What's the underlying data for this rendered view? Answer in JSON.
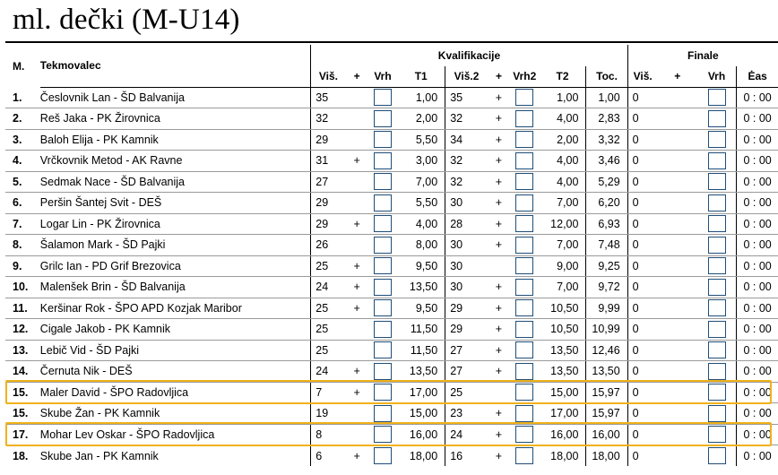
{
  "title": "ml. dečki (M-U14)",
  "headers": {
    "rank": "M.",
    "name": "Tekmovalec",
    "qual_group": "Kvalifikacije",
    "final_group": "Finale",
    "vis": "Viš.",
    "plus": "+",
    "vrh": "Vrh",
    "t1": "T1",
    "vis2": "Viš.2",
    "plus2": "+",
    "vrh2": "Vrh2",
    "t2": "T2",
    "toc": "Toc.",
    "fvis": "Viš.",
    "fplus": "+",
    "fvrh": "Vrh",
    "cas": "Ėas"
  },
  "highlight_color": "#f0b21a",
  "rows": [
    {
      "rank": "1.",
      "name": "Česlovnik Lan - ŠD Balvanija",
      "vis": "35",
      "plus": "",
      "t1": "1,00",
      "vis2": "35",
      "plus2": "+",
      "t2": "1,00",
      "toc": "1,00",
      "fvis": "0",
      "cas": "0 : 00",
      "hl": false
    },
    {
      "rank": "2.",
      "name": "Reš Jaka - PK Žirovnica",
      "vis": "32",
      "plus": "",
      "t1": "2,00",
      "vis2": "32",
      "plus2": "+",
      "t2": "4,00",
      "toc": "2,83",
      "fvis": "0",
      "cas": "0 : 00",
      "hl": false
    },
    {
      "rank": "3.",
      "name": "Baloh Elija - PK Kamnik",
      "vis": "29",
      "plus": "",
      "t1": "5,50",
      "vis2": "34",
      "plus2": "+",
      "t2": "2,00",
      "toc": "3,32",
      "fvis": "0",
      "cas": "0 : 00",
      "hl": false
    },
    {
      "rank": "4.",
      "name": "Vrčkovnik Metod - AK Ravne",
      "vis": "31",
      "plus": "+",
      "t1": "3,00",
      "vis2": "32",
      "plus2": "+",
      "t2": "4,00",
      "toc": "3,46",
      "fvis": "0",
      "cas": "0 : 00",
      "hl": false
    },
    {
      "rank": "5.",
      "name": "Sedmak Nace - ŠD Balvanija",
      "vis": "27",
      "plus": "",
      "t1": "7,00",
      "vis2": "32",
      "plus2": "+",
      "t2": "4,00",
      "toc": "5,29",
      "fvis": "0",
      "cas": "0 : 00",
      "hl": false
    },
    {
      "rank": "6.",
      "name": "Peršin Šantej Svit - DEŠ",
      "vis": "29",
      "plus": "",
      "t1": "5,50",
      "vis2": "30",
      "plus2": "+",
      "t2": "7,00",
      "toc": "6,20",
      "fvis": "0",
      "cas": "0 : 00",
      "hl": false
    },
    {
      "rank": "7.",
      "name": "Logar Lin - PK Žirovnica",
      "vis": "29",
      "plus": "+",
      "t1": "4,00",
      "vis2": "28",
      "plus2": "+",
      "t2": "12,00",
      "toc": "6,93",
      "fvis": "0",
      "cas": "0 : 00",
      "hl": false
    },
    {
      "rank": "8.",
      "name": "Šalamon Mark - ŠD Pajki",
      "vis": "26",
      "plus": "",
      "t1": "8,00",
      "vis2": "30",
      "plus2": "+",
      "t2": "7,00",
      "toc": "7,48",
      "fvis": "0",
      "cas": "0 : 00",
      "hl": false
    },
    {
      "rank": "9.",
      "name": "Grilc Ian - PD Grif Brezovica",
      "vis": "25",
      "plus": "+",
      "t1": "9,50",
      "vis2": "30",
      "plus2": "",
      "t2": "9,00",
      "toc": "9,25",
      "fvis": "0",
      "cas": "0 : 00",
      "hl": false
    },
    {
      "rank": "10.",
      "name": "Malenšek Brin - ŠD Balvanija",
      "vis": "24",
      "plus": "+",
      "t1": "13,50",
      "vis2": "30",
      "plus2": "+",
      "t2": "7,00",
      "toc": "9,72",
      "fvis": "0",
      "cas": "0 : 00",
      "hl": false
    },
    {
      "rank": "11.",
      "name": "Keršinar Rok - ŠPO APD Kozjak Maribor",
      "vis": "25",
      "plus": "+",
      "t1": "9,50",
      "vis2": "29",
      "plus2": "+",
      "t2": "10,50",
      "toc": "9,99",
      "fvis": "0",
      "cas": "0 : 00",
      "hl": false
    },
    {
      "rank": "12.",
      "name": "Cigale Jakob - PK Kamnik",
      "vis": "25",
      "plus": "",
      "t1": "11,50",
      "vis2": "29",
      "plus2": "+",
      "t2": "10,50",
      "toc": "10,99",
      "fvis": "0",
      "cas": "0 : 00",
      "hl": false
    },
    {
      "rank": "13.",
      "name": "Lebič Vid - ŠD Pajki",
      "vis": "25",
      "plus": "",
      "t1": "11,50",
      "vis2": "27",
      "plus2": "+",
      "t2": "13,50",
      "toc": "12,46",
      "fvis": "0",
      "cas": "0 : 00",
      "hl": false
    },
    {
      "rank": "14.",
      "name": "Černuta Nik - DEŠ",
      "vis": "24",
      "plus": "+",
      "t1": "13,50",
      "vis2": "27",
      "plus2": "+",
      "t2": "13,50",
      "toc": "13,50",
      "fvis": "0",
      "cas": "0 : 00",
      "hl": false
    },
    {
      "rank": "15.",
      "name": "Maler David - ŠPO Radovljica",
      "vis": "7",
      "plus": "+",
      "t1": "17,00",
      "vis2": "25",
      "plus2": "",
      "t2": "15,00",
      "toc": "15,97",
      "fvis": "0",
      "cas": "0 : 00",
      "hl": true
    },
    {
      "rank": "15.",
      "name": "Skube Žan - PK Kamnik",
      "vis": "19",
      "plus": "",
      "t1": "15,00",
      "vis2": "23",
      "plus2": "+",
      "t2": "17,00",
      "toc": "15,97",
      "fvis": "0",
      "cas": "0 : 00",
      "hl": false
    },
    {
      "rank": "17.",
      "name": "Mohar Lev Oskar - ŠPO Radovljica",
      "vis": "8",
      "plus": "",
      "t1": "16,00",
      "vis2": "24",
      "plus2": "+",
      "t2": "16,00",
      "toc": "16,00",
      "fvis": "0",
      "cas": "0 : 00",
      "hl": true
    },
    {
      "rank": "18.",
      "name": "Skube Jan - PK Kamnik",
      "vis": "6",
      "plus": "+",
      "t1": "18,00",
      "vis2": "16",
      "plus2": "+",
      "t2": "18,00",
      "toc": "18,00",
      "fvis": "0",
      "cas": "0 : 00",
      "hl": false
    }
  ]
}
